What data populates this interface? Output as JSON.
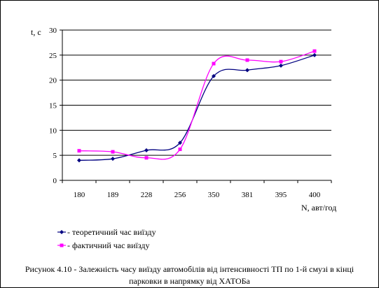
{
  "chart_data": {
    "type": "line",
    "ylabel": "t, c",
    "xlabel": "N, авт/год",
    "categories": [
      "180",
      "189",
      "228",
      "256",
      "350",
      "381",
      "395",
      "400"
    ],
    "ylim": [
      0,
      30
    ],
    "yticks": [
      0,
      5,
      10,
      15,
      20,
      25,
      30
    ],
    "grid": "horizontal",
    "legend_position": "bottom-left",
    "series": [
      {
        "name": "теоретичний час виїзду",
        "color": "#000080",
        "marker": "diamond",
        "x": [
          180,
          189,
          228,
          256,
          350,
          381,
          395,
          400
        ],
        "values": [
          4.0,
          4.3,
          6.0,
          7.5,
          20.8,
          22.0,
          22.9,
          25.0
        ]
      },
      {
        "name": "фактичний час виїзду",
        "color": "#ff00ff",
        "marker": "square",
        "x": [
          180,
          189,
          228,
          256,
          350,
          381,
          395,
          400
        ],
        "values": [
          5.9,
          5.7,
          4.5,
          6.2,
          23.3,
          24.0,
          23.7,
          25.8
        ]
      }
    ]
  },
  "legend": {
    "item1": "- теоретичний час виїзду",
    "item2": "- фактичний час виїзду"
  },
  "caption": {
    "line1": "Рисунок 4.10 - Залежність часу виїзду автомобілів від інтенсивності ТП по 1-й смузі в кінці",
    "line2": "парковки в напрямку від ХАТОБа"
  }
}
